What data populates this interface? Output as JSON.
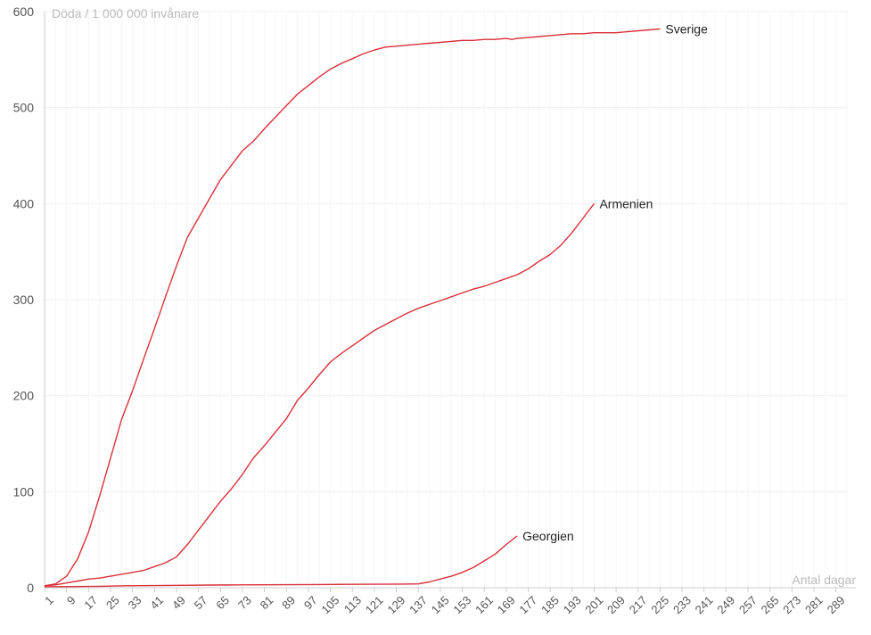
{
  "chart_data": {
    "type": "line",
    "ylabel": "Döda / 1 000 000 invånare",
    "xlabel": "Antal dagar",
    "ylim": [
      0,
      600
    ],
    "xlim": [
      1,
      293
    ],
    "y_ticks": [
      0,
      100,
      200,
      300,
      400,
      500,
      600
    ],
    "x_ticks": [
      1,
      9,
      17,
      25,
      33,
      41,
      49,
      57,
      65,
      73,
      81,
      89,
      97,
      105,
      113,
      121,
      129,
      137,
      145,
      153,
      161,
      169,
      177,
      185,
      193,
      201,
      209,
      217,
      225,
      233,
      241,
      249,
      257,
      265,
      273,
      281,
      289
    ],
    "grid": true,
    "line_color": "#d9303a",
    "series": [
      {
        "name": "Sverige",
        "x": [
          1,
          5,
          9,
          13,
          17,
          21,
          25,
          29,
          33,
          37,
          41,
          45,
          49,
          53,
          57,
          61,
          65,
          69,
          73,
          77,
          81,
          85,
          89,
          93,
          97,
          101,
          105,
          109,
          113,
          117,
          121,
          125,
          129,
          133,
          137,
          141,
          145,
          149,
          153,
          157,
          161,
          165,
          169,
          171,
          173,
          177,
          181,
          185,
          189,
          193,
          197,
          201,
          205,
          209,
          213,
          217,
          221,
          225
        ],
        "y": [
          2,
          4,
          12,
          30,
          58,
          95,
          135,
          175,
          205,
          238,
          270,
          303,
          335,
          365,
          385,
          405,
          425,
          440,
          455,
          465,
          478,
          490,
          502,
          514,
          523,
          532,
          540,
          546,
          551,
          556,
          560,
          563,
          564,
          565,
          566,
          567,
          568,
          569,
          570,
          570,
          571,
          571,
          572,
          571,
          572,
          573,
          574,
          575,
          576,
          577,
          577,
          578,
          578,
          578,
          579,
          580,
          581,
          582
        ]
      },
      {
        "name": "Armenien",
        "x": [
          1,
          5,
          9,
          13,
          17,
          21,
          25,
          29,
          33,
          37,
          41,
          45,
          49,
          53,
          57,
          61,
          65,
          69,
          73,
          77,
          81,
          85,
          89,
          93,
          97,
          101,
          105,
          109,
          113,
          117,
          121,
          125,
          129,
          133,
          137,
          141,
          145,
          149,
          153,
          157,
          161,
          165,
          169,
          173,
          177,
          181,
          185,
          189,
          193,
          197,
          201
        ],
        "y": [
          2,
          3,
          5,
          7,
          9,
          10,
          12,
          14,
          16,
          18,
          22,
          26,
          32,
          45,
          60,
          75,
          90,
          103,
          118,
          135,
          148,
          162,
          176,
          195,
          208,
          222,
          235,
          244,
          252,
          260,
          268,
          274,
          280,
          286,
          291,
          295,
          299,
          303,
          307,
          311,
          314,
          318,
          322,
          326,
          332,
          340,
          347,
          357,
          370,
          385,
          400
        ]
      },
      {
        "name": "Georgien",
        "x": [
          1,
          11,
          21,
          31,
          41,
          51,
          61,
          71,
          81,
          91,
          101,
          111,
          121,
          131,
          137,
          141,
          145,
          149,
          153,
          157,
          161,
          165,
          169,
          173
        ],
        "y": [
          1,
          1.2,
          1.5,
          2,
          2.2,
          2.5,
          2.8,
          3,
          3.1,
          3.2,
          3.3,
          3.5,
          3.6,
          3.8,
          4,
          6,
          9,
          12,
          16,
          21,
          28,
          35,
          45,
          54
        ]
      }
    ]
  }
}
